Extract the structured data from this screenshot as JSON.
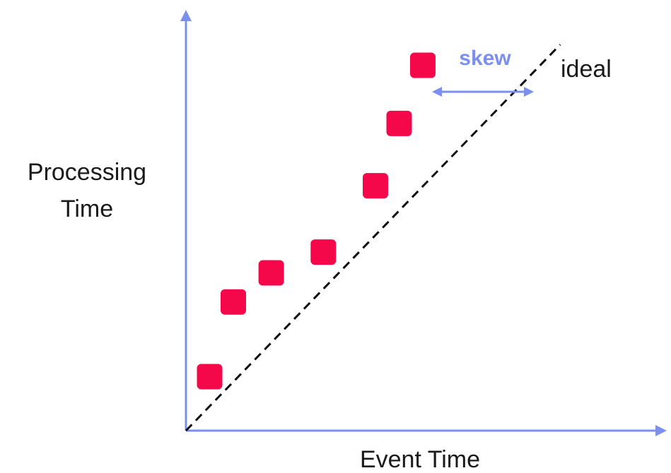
{
  "diagram": {
    "y_axis_label_line1": "Processing",
    "y_axis_label_line2": "Time",
    "x_axis_label": "Event Time",
    "ideal_label": "ideal",
    "skew_label": "skew"
  },
  "colors": {
    "axis": "#7b8ff0",
    "point": "#f5084a",
    "ideal_line": "#111111",
    "skew": "#7b8ff0"
  },
  "chart_data": {
    "type": "scatter",
    "description_free": true,
    "points": [
      {
        "x": 0.05,
        "y": 0.13
      },
      {
        "x": 0.1,
        "y": 0.31
      },
      {
        "x": 0.18,
        "y": 0.38
      },
      {
        "x": 0.29,
        "y": 0.43
      },
      {
        "x": 0.4,
        "y": 0.59
      },
      {
        "x": 0.45,
        "y": 0.74
      },
      {
        "x": 0.5,
        "y": 0.88
      }
    ],
    "ideal_line": {
      "from": [
        0,
        0
      ],
      "to": [
        0.79,
        0.93
      ]
    }
  }
}
